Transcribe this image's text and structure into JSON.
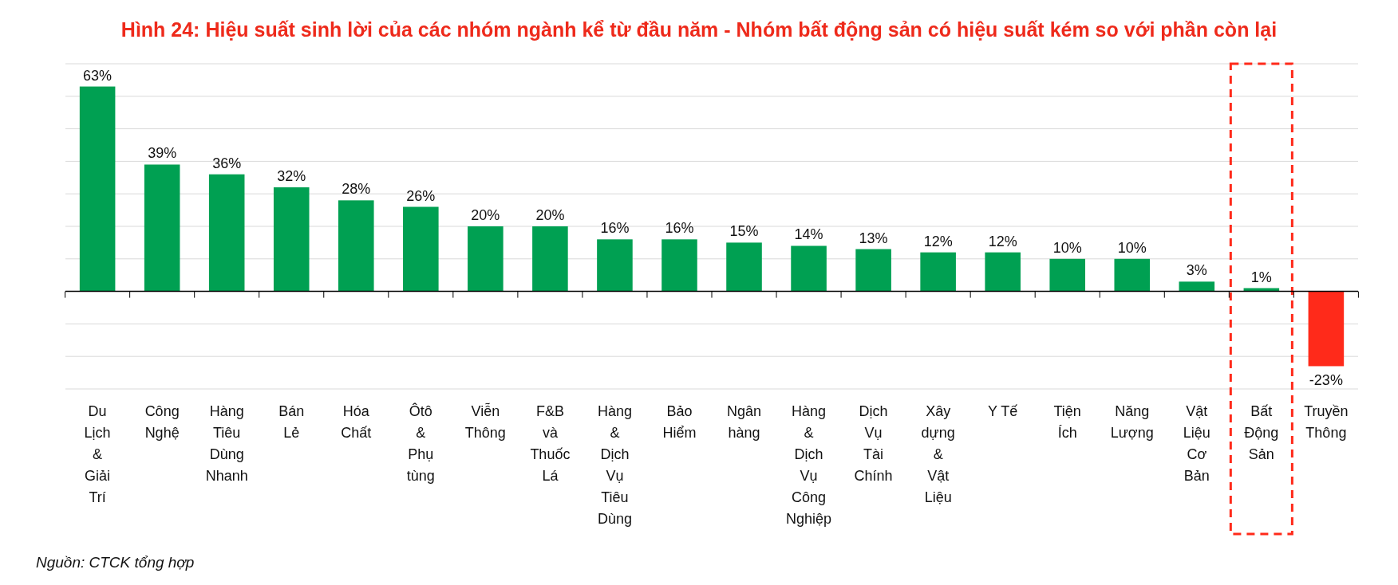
{
  "chart_data": {
    "type": "bar",
    "title": "Hình 24: Hiệu suất sinh lời của các nhóm ngành kể từ đầu năm -  Nhóm bất động sản có hiệu suất kém so với phần còn lại",
    "categories": [
      "Du Lịch & Giải Trí",
      "Công Nghệ",
      "Hàng Tiêu Dùng Nhanh",
      "Bán Lẻ",
      "Hóa Chất",
      "Ôtô & Phụ tùng",
      "Viễn Thông",
      "F&B và Thuốc Lá",
      "Hàng & Dịch Vụ Tiêu Dùng",
      "Bảo Hiểm",
      "Ngân hàng",
      "Hàng & Dịch Vụ Công Nghiệp",
      "Dịch Vụ Tài Chính",
      "Xây dựng & Vật Liệu",
      "Y Tế",
      "Tiện Ích",
      "Năng Lượng",
      "Vật Liệu Cơ Bản",
      "Bất Động Sản",
      "Truyền Thông"
    ],
    "values": [
      63,
      39,
      36,
      32,
      28,
      26,
      20,
      20,
      16,
      16,
      15,
      14,
      13,
      12,
      12,
      10,
      10,
      3,
      1,
      -23
    ],
    "value_labels": [
      "63%",
      "39%",
      "36%",
      "32%",
      "28%",
      "26%",
      "20%",
      "20%",
      "16%",
      "16%",
      "15%",
      "14%",
      "13%",
      "12%",
      "12%",
      "10%",
      "10%",
      "3%",
      "1%",
      "-23%"
    ],
    "colors": [
      "#00a052",
      "#00a052",
      "#00a052",
      "#00a052",
      "#00a052",
      "#00a052",
      "#00a052",
      "#00a052",
      "#00a052",
      "#00a052",
      "#00a052",
      "#00a052",
      "#00a052",
      "#00a052",
      "#00a052",
      "#00a052",
      "#00a052",
      "#00a052",
      "#00a052",
      "#ff2a1a"
    ],
    "ylim": [
      -30,
      70
    ],
    "yticks": [
      {
        "value": -30,
        "label": null
      },
      {
        "value": -20,
        "label": null
      },
      {
        "value": -10,
        "label": null
      },
      {
        "value": 0,
        "label": null
      },
      {
        "value": 10,
        "label": null
      },
      {
        "value": 20,
        "label": null
      },
      {
        "value": 30,
        "label": null
      },
      {
        "value": 40,
        "label": null
      },
      {
        "value": 50,
        "label": null
      },
      {
        "value": 60,
        "label": null
      },
      {
        "value": 70,
        "label": null
      }
    ],
    "tick_labels": "x",
    "grid": "y",
    "annotations": [
      "Nguồn: CTCK tổng hợp"
    ]
  }
}
